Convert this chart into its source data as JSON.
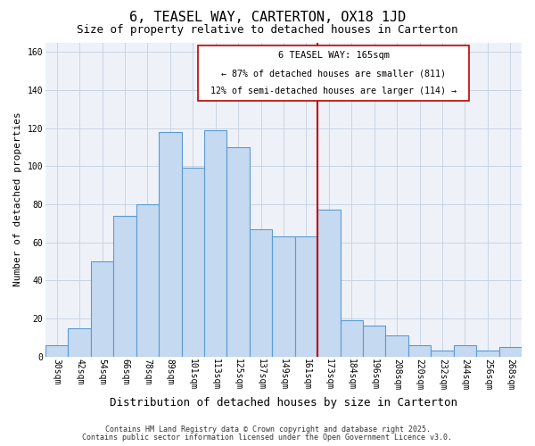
{
  "title": "6, TEASEL WAY, CARTERTON, OX18 1JD",
  "subtitle": "Size of property relative to detached houses in Carterton",
  "xlabel": "Distribution of detached houses by size in Carterton",
  "ylabel": "Number of detached properties",
  "bin_labels": [
    "30sqm",
    "42sqm",
    "54sqm",
    "66sqm",
    "78sqm",
    "89sqm",
    "101sqm",
    "113sqm",
    "125sqm",
    "137sqm",
    "149sqm",
    "161sqm",
    "173sqm",
    "184sqm",
    "196sqm",
    "208sqm",
    "220sqm",
    "232sqm",
    "244sqm",
    "256sqm",
    "268sqm"
  ],
  "bar_heights": [
    6,
    15,
    50,
    74,
    80,
    118,
    99,
    119,
    110,
    67,
    63,
    63,
    77,
    19,
    16,
    11,
    6,
    3,
    6,
    3,
    5
  ],
  "bar_color": "#c5d9f0",
  "bar_edge_color": "#5b9bd5",
  "bar_linewidth": 0.8,
  "vline_x": 11.5,
  "vline_color": "#c00000",
  "vline_linewidth": 1.5,
  "annotation_title": "6 TEASEL WAY: 165sqm",
  "annotation_line1": "← 87% of detached houses are smaller (811)",
  "annotation_line2": "12% of semi-detached houses are larger (114) →",
  "ylim": [
    0,
    165
  ],
  "yticks": [
    0,
    20,
    40,
    60,
    80,
    100,
    120,
    140,
    160
  ],
  "grid_color": "#c8d4e3",
  "bg_color": "#eef2f8",
  "footer_line1": "Contains HM Land Registry data © Crown copyright and database right 2025.",
  "footer_line2": "Contains public sector information licensed under the Open Government Licence v3.0.",
  "title_fontsize": 11,
  "subtitle_fontsize": 9,
  "xlabel_fontsize": 9,
  "ylabel_fontsize": 8,
  "tick_fontsize": 7,
  "annotation_fontsize_title": 7.5,
  "annotation_fontsize_body": 7.2,
  "footer_fontsize": 6
}
